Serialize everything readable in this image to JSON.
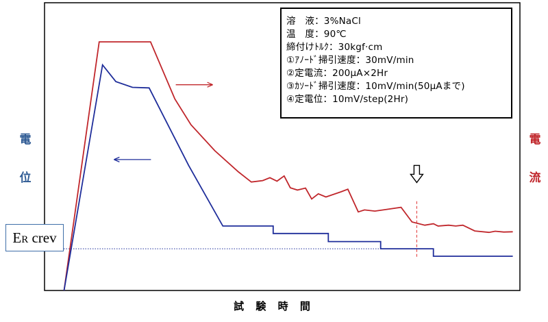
{
  "chart_data": {
    "type": "line",
    "title": "",
    "xlabel": "試 験 時 間",
    "ylabel_left": "電位",
    "ylabel_right": "電流",
    "xlim": [
      0,
      100
    ],
    "ylim": [
      0,
      100
    ],
    "ticks": "none",
    "grid": false,
    "legend": "none",
    "series": [
      {
        "color": "#c0262b",
        "x": [
          4.1,
          11.5,
          22.3,
          27.4,
          30.8,
          35.8,
          40.8,
          43.5,
          45.9,
          47.4,
          48.9,
          50.4,
          51.7,
          53.2,
          54.9,
          56.2,
          57.6,
          59.2,
          60.4,
          62.4,
          63.8,
          66.0,
          67.3,
          69.5,
          72.0,
          75.0,
          77.3,
          80.0,
          81.8,
          82.8,
          85.0,
          86.5,
          88.0,
          90.5,
          93.5,
          94.8,
          96.6,
          98.5
        ],
        "y": [
          0,
          86.4,
          86.4,
          66.6,
          57.6,
          48.6,
          41.2,
          37.7,
          38.2,
          39.2,
          38.0,
          39.8,
          35.7,
          34.9,
          35.6,
          31.8,
          33.6,
          32.5,
          33.2,
          34.3,
          35.2,
          27.3,
          28.0,
          27.6,
          28.2,
          28.9,
          23.8,
          22.7,
          23.2,
          22.4,
          22.7,
          22.4,
          22.7,
          20.7,
          20.2,
          20.6,
          20.3,
          20.4
        ]
      },
      {
        "color": "#1e2d9a",
        "x": [
          4.1,
          12.2,
          15.0,
          18.5,
          22.0,
          30.3,
          37.5,
          48.1,
          48.1,
          59.7,
          59.7,
          70.7,
          70.7,
          81.8,
          81.8,
          98.5
        ],
        "y": [
          0,
          78.4,
          72.6,
          70.6,
          70.4,
          43.5,
          22.4,
          22.4,
          19.8,
          19.8,
          17.0,
          17.0,
          14.5,
          14.5,
          11.9,
          11.9
        ]
      }
    ],
    "reference_lines": [
      {
        "type": "horizontal",
        "y": 14.5,
        "color": "#1e2d9a",
        "style": "dotted",
        "label": "ER crev"
      },
      {
        "type": "vertical",
        "x": 78.3,
        "color": "#e03030",
        "style": "dashed"
      }
    ],
    "annotations": [
      {
        "type": "arrow",
        "direction": "right",
        "x": 31.5,
        "y": 71.5,
        "color": "#c0262b"
      },
      {
        "type": "arrow",
        "direction": "left",
        "x": 18.5,
        "y": 45.5,
        "color": "#1e2d9a"
      },
      {
        "type": "hollow-arrow",
        "direction": "down",
        "x": 78.3,
        "y": 38,
        "color": "#000000"
      }
    ]
  },
  "info_box": {
    "lines": [
      "溶　液：3%NaCl",
      "温　度：90℃",
      "締付けﾄﾙｸ：30kgf·cm",
      "①ｱﾉｰﾄﾞ掃引速度：30mV/min",
      "②定電流：200μA×2Hr",
      "③ｶｿｰﾄﾞ掃引速度：10mV/min(50μAまで)",
      "④定電位：10mV/step(2Hr)"
    ]
  },
  "labels": {
    "y_left_1": "電",
    "y_left_2": "位",
    "y_right_1": "電",
    "y_right_2": "流",
    "x_axis": "試 験 時 間",
    "er_main": "E",
    "er_sub": "R",
    "er_rest": " crev"
  }
}
